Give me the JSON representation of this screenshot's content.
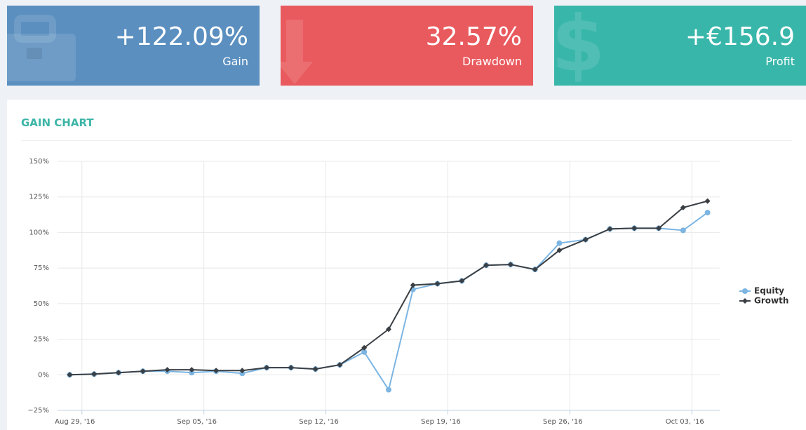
{
  "cards": [
    {
      "value": "+122.09%",
      "label": "Gain",
      "color": "#5a8fbf"
    },
    {
      "value": "32.57%",
      "label": "Drawdown",
      "color": "#e95a5e"
    },
    {
      "value": "+€156.9",
      "label": "Profit",
      "color": "#38b6aa"
    }
  ],
  "chart_data": {
    "type": "line",
    "title": "GAIN CHART",
    "x": [
      241.3,
      242.7,
      244.1,
      245.5,
      246.9,
      248.3,
      249.7,
      251.2,
      252.6,
      254.0,
      255.4,
      256.8,
      258.2,
      259.6,
      261.0,
      262.4,
      263.8,
      265.2,
      266.6,
      268.0,
      269.4,
      270.9,
      272.3,
      273.7,
      275.1,
      276.5,
      277.9
    ],
    "series": [
      {
        "name": "Equity",
        "color": "#7cb5e2",
        "values": [
          0,
          0.5,
          1.5,
          2.5,
          2.5,
          1.5,
          2.5,
          1,
          5,
          5,
          4,
          7,
          16,
          -10.5,
          60,
          64,
          66,
          77,
          77.5,
          74,
          92.5,
          95,
          102.5,
          103,
          103,
          101.5,
          114
        ]
      },
      {
        "name": "Growth",
        "color": "#3a3f44",
        "values": [
          0,
          0.5,
          1.5,
          2.5,
          3.5,
          3.5,
          3,
          3,
          5,
          5,
          4,
          7,
          19,
          32,
          63,
          64,
          66,
          77,
          77.5,
          74,
          87.5,
          95,
          102.5,
          103,
          103,
          117.5,
          122.09
        ]
      }
    ],
    "xlim": [
      240.6,
      278.6
    ],
    "xticks": [
      {
        "value": 242,
        "label": "Aug 29, '16"
      },
      {
        "value": 249,
        "label": "Sep 05, '16"
      },
      {
        "value": 256,
        "label": "Sep 12, '16"
      },
      {
        "value": 263,
        "label": "Sep 19, '16"
      },
      {
        "value": 270,
        "label": "Sep 26, '16"
      },
      {
        "value": 277,
        "label": "Oct 03, '16"
      }
    ],
    "ylim": [
      -25,
      150
    ],
    "yticks": [
      {
        "value": -25,
        "label": "−25%"
      },
      {
        "value": 0,
        "label": "0%"
      },
      {
        "value": 25,
        "label": "25%"
      },
      {
        "value": 50,
        "label": "50%"
      },
      {
        "value": 75,
        "label": "75%"
      },
      {
        "value": 100,
        "label": "100%"
      },
      {
        "value": 125,
        "label": "125%"
      },
      {
        "value": 150,
        "label": "150%"
      }
    ],
    "grid": true,
    "legend": "right"
  }
}
